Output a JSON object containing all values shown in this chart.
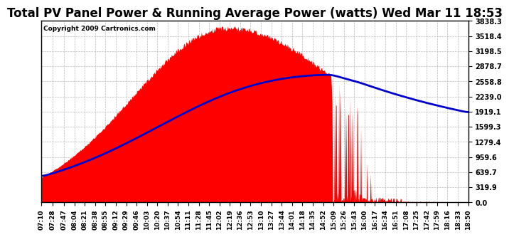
{
  "title": "Total PV Panel Power & Running Average Power (watts) Wed Mar 11 18:53",
  "copyright": "Copyright 2009 Cartronics.com",
  "bg_color": "#ffffff",
  "plot_bg_color": "#ffffff",
  "grid_color": "#bbbbbb",
  "bar_color": "#ff0000",
  "line_color": "#0000cc",
  "ytick_labels": [
    "0.0",
    "319.9",
    "639.7",
    "959.6",
    "1279.4",
    "1599.3",
    "1919.1",
    "2239.0",
    "2558.8",
    "2878.7",
    "3198.5",
    "3518.4",
    "3838.3"
  ],
  "ymax": 3838.3,
  "ymin": 0.0,
  "xtick_labels": [
    "07:10",
    "07:28",
    "07:47",
    "08:04",
    "08:21",
    "08:38",
    "08:55",
    "09:12",
    "09:29",
    "09:46",
    "10:03",
    "10:20",
    "10:37",
    "10:54",
    "11:11",
    "11:28",
    "11:45",
    "12:02",
    "12:19",
    "12:36",
    "12:53",
    "13:10",
    "13:27",
    "13:44",
    "14:01",
    "14:18",
    "14:35",
    "14:52",
    "15:09",
    "15:26",
    "15:43",
    "16:00",
    "16:17",
    "16:34",
    "16:51",
    "17:08",
    "17:25",
    "17:42",
    "17:59",
    "18:16",
    "18:33",
    "18:50"
  ],
  "title_fontsize": 12,
  "copyright_fontsize": 6.5,
  "tick_fontsize": 6.5,
  "ytick_fontsize": 7
}
